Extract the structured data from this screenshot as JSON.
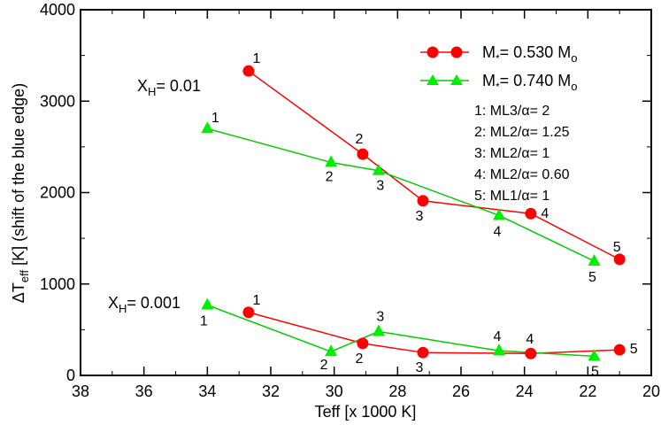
{
  "chart_data": {
    "type": "line",
    "xlabel": "Teff [x 1000 K]",
    "ylabel": {
      "prefix": "ΔT",
      "sub": "eff",
      "suffix": " [K] (shift of the blue edge)"
    },
    "xlim": [
      38,
      20
    ],
    "ylim": [
      0,
      4000
    ],
    "xticks": [
      38,
      36,
      34,
      32,
      30,
      28,
      26,
      24,
      22,
      20
    ],
    "yticks": [
      0,
      1000,
      2000,
      3000,
      4000
    ],
    "grid": false,
    "series": [
      {
        "name": "M*= 0.530 Mo",
        "legend": {
          "prefix": "M",
          "star": "*",
          "mid": "= 0.530 M",
          "sub": "o"
        },
        "color": "#ff0000",
        "marker": "circle",
        "groups": [
          {
            "x": [
              32.7,
              29.1,
              27.2,
              23.8,
              21.0
            ],
            "y": [
              3330,
              2420,
              1910,
              1770,
              1270
            ],
            "labels": [
              "1",
              "2",
              "3",
              "4",
              "5"
            ]
          },
          {
            "x": [
              32.7,
              29.1,
              27.2,
              23.8,
              21.0
            ],
            "y": [
              690,
              350,
              250,
              240,
              280
            ],
            "labels": [
              "1",
              "2",
              "3",
              "4",
              "5"
            ]
          }
        ]
      },
      {
        "name": "M*= 0.740 Mo",
        "legend": {
          "prefix": "M",
          "star": "*",
          "mid": "= 0.740 M",
          "sub": "o"
        },
        "color": "#00cc00",
        "marker": "triangle",
        "groups": [
          {
            "x": [
              34.0,
              30.1,
              28.6,
              24.8,
              21.8
            ],
            "y": [
              2700,
              2330,
              2240,
              1750,
              1250
            ],
            "labels": [
              "1",
              "2",
              "3",
              "4",
              "5"
            ]
          },
          {
            "x": [
              34.0,
              30.1,
              28.6,
              24.8,
              21.8
            ],
            "y": [
              770,
              260,
              480,
              270,
              210
            ],
            "labels": [
              "1",
              "2",
              "3",
              "4",
              "5"
            ]
          }
        ]
      }
    ],
    "annotations": {
      "xh_high": {
        "prefix": "X",
        "sub": "H",
        "suffix": "= 0.01"
      },
      "xh_low": {
        "prefix": "X",
        "sub": "H",
        "suffix": "= 0.001"
      },
      "models": [
        "1: ML3/α= 2",
        "2: ML2/α= 1.25",
        "3: ML2/α= 1",
        "4: ML2/α= 0.60",
        "5: ML1/α= 1"
      ]
    }
  }
}
